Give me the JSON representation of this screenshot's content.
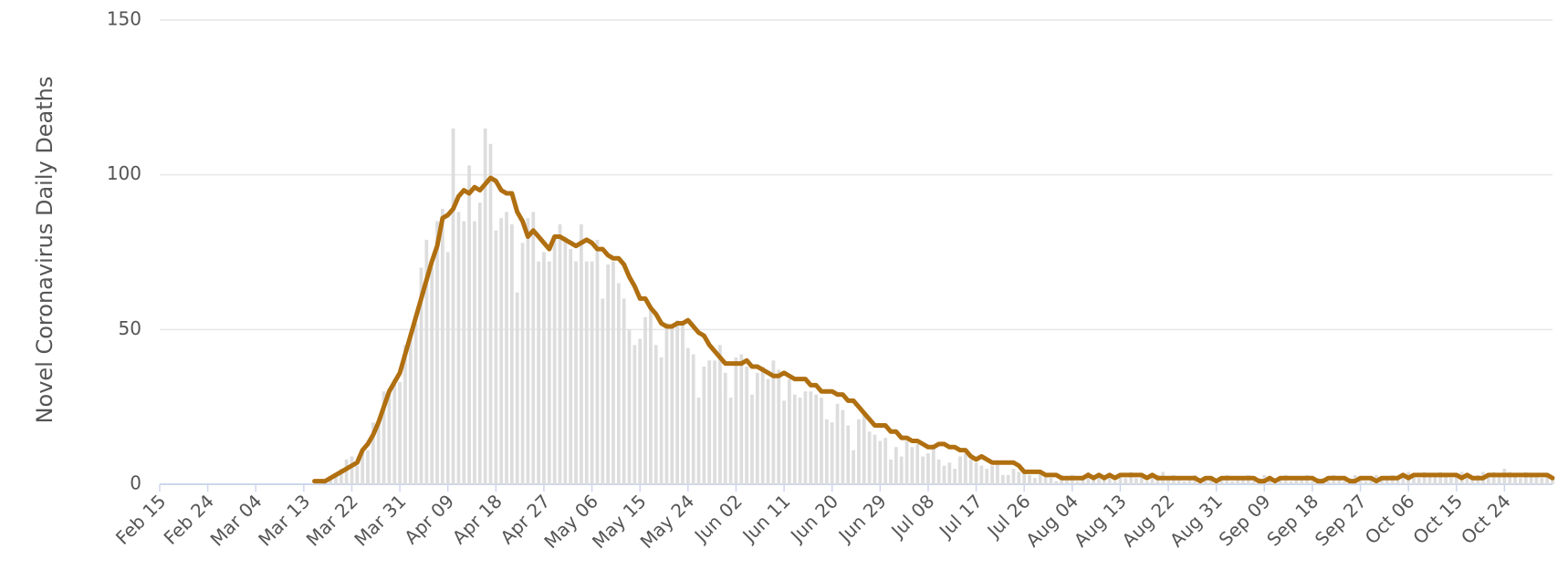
{
  "chart_data": {
    "type": "combo",
    "y_label": "Novel Coronavirus Daily Deaths",
    "categories": [
      "Feb 15",
      null,
      null,
      null,
      null,
      null,
      null,
      null,
      null,
      "Feb 24",
      null,
      null,
      null,
      null,
      null,
      null,
      null,
      null,
      "Mar 04",
      null,
      null,
      null,
      null,
      null,
      null,
      null,
      null,
      "Mar 13",
      null,
      null,
      null,
      null,
      null,
      null,
      null,
      null,
      "Mar 22",
      null,
      null,
      null,
      null,
      null,
      null,
      null,
      null,
      "Mar 31",
      null,
      null,
      null,
      null,
      null,
      null,
      null,
      null,
      "Apr 09",
      null,
      null,
      null,
      null,
      null,
      null,
      null,
      null,
      "Apr 18",
      null,
      null,
      null,
      null,
      null,
      null,
      null,
      null,
      "Apr 27",
      null,
      null,
      null,
      null,
      null,
      null,
      null,
      null,
      "May 06",
      null,
      null,
      null,
      null,
      null,
      null,
      null,
      null,
      "May 15",
      null,
      null,
      null,
      null,
      null,
      null,
      null,
      null,
      "May 24",
      null,
      null,
      null,
      null,
      null,
      null,
      null,
      null,
      "Jun 02",
      null,
      null,
      null,
      null,
      null,
      null,
      null,
      null,
      "Jun 11",
      null,
      null,
      null,
      null,
      null,
      null,
      null,
      null,
      "Jun 20",
      null,
      null,
      null,
      null,
      null,
      null,
      null,
      null,
      "Jun 29",
      null,
      null,
      null,
      null,
      null,
      null,
      null,
      null,
      "Jul 08",
      null,
      null,
      null,
      null,
      null,
      null,
      null,
      null,
      "Jul 17",
      null,
      null,
      null,
      null,
      null,
      null,
      null,
      null,
      "Jul 26",
      null,
      null,
      null,
      null,
      null,
      null,
      null,
      null,
      "Aug 04",
      null,
      null,
      null,
      null,
      null,
      null,
      null,
      null,
      "Aug 13",
      null,
      null,
      null,
      null,
      null,
      null,
      null,
      null,
      "Aug 22",
      null,
      null,
      null,
      null,
      null,
      null,
      null,
      null,
      "Aug 31",
      null,
      null,
      null,
      null,
      null,
      null,
      null,
      null,
      "Sep 09",
      null,
      null,
      null,
      null,
      null,
      null,
      null,
      null,
      "Sep 18",
      null,
      null,
      null,
      null,
      null,
      null,
      null,
      null,
      "Sep 27",
      null,
      null,
      null,
      null,
      null,
      null,
      null,
      null,
      "Oct 06",
      null,
      null,
      null,
      null,
      null,
      null,
      null,
      null,
      "Oct 15",
      null,
      null,
      null,
      null,
      null,
      null,
      null,
      null,
      "Oct 24",
      null,
      null,
      null,
      null,
      null,
      null,
      null,
      null,
      null
    ],
    "series": [
      {
        "type": "bar",
        "color": "#dddddd",
        "values": [
          0,
          0,
          0,
          0,
          0,
          0,
          0,
          0,
          0,
          0,
          0,
          0,
          0,
          0,
          0,
          0,
          0,
          0,
          0,
          0,
          0,
          0,
          0,
          0,
          0,
          0,
          0,
          0,
          0,
          1,
          1,
          0,
          2,
          3,
          5,
          8,
          9,
          6,
          11,
          11,
          20,
          21,
          30,
          31,
          34,
          33,
          45,
          48,
          52,
          70,
          79,
          70,
          85,
          89,
          75,
          115,
          88,
          85,
          103,
          85,
          91,
          115,
          110,
          82,
          86,
          88,
          84,
          62,
          78,
          86,
          88,
          72,
          75,
          72,
          80,
          84,
          80,
          76,
          72,
          84,
          72,
          72,
          79,
          60,
          71,
          72,
          65,
          60,
          50,
          45,
          47,
          54,
          58,
          45,
          41,
          52,
          51,
          53,
          52,
          44,
          42,
          28,
          38,
          40,
          40,
          45,
          36,
          28,
          41,
          42,
          38,
          29,
          36,
          38,
          34,
          40,
          37,
          27,
          34,
          29,
          28,
          30,
          30,
          29,
          28,
          21,
          20,
          26,
          24,
          19,
          11,
          21,
          23,
          17,
          16,
          14,
          15,
          8,
          12,
          9,
          14,
          12,
          13,
          9,
          10,
          12,
          8,
          6,
          7,
          5,
          9,
          10,
          8,
          7,
          6,
          5,
          6,
          7,
          3,
          3,
          5,
          4,
          4,
          3,
          2,
          4,
          3,
          2,
          1,
          3,
          2,
          3,
          1,
          2,
          4,
          2,
          3,
          2,
          3,
          1,
          3,
          2,
          4,
          2,
          3,
          1,
          2,
          3,
          4,
          2,
          3,
          2,
          1,
          2,
          3,
          2,
          1,
          2,
          1,
          2,
          3,
          1,
          2,
          2,
          3,
          1,
          2,
          3,
          1,
          2,
          2,
          3,
          1,
          2,
          2,
          3,
          1,
          2,
          2,
          1,
          3,
          2,
          1,
          2,
          3,
          2,
          1,
          2,
          3,
          2,
          2,
          3,
          2,
          3,
          4,
          3,
          2,
          4,
          3,
          3,
          4,
          3,
          2,
          3,
          4,
          3,
          2,
          3,
          4,
          3,
          4,
          3,
          5,
          4,
          3,
          2,
          4,
          3,
          3,
          2,
          3,
          2
        ]
      },
      {
        "type": "line",
        "color": "#b06f10",
        "values": [
          null,
          null,
          null,
          null,
          null,
          null,
          null,
          null,
          null,
          null,
          null,
          null,
          null,
          null,
          null,
          null,
          null,
          null,
          null,
          null,
          null,
          null,
          null,
          null,
          null,
          null,
          null,
          null,
          null,
          1,
          1,
          1,
          2,
          3,
          4,
          5,
          6,
          7,
          11,
          13,
          16,
          20,
          25,
          30,
          33,
          36,
          42,
          48,
          54,
          60,
          66,
          72,
          77,
          86,
          87,
          89,
          93,
          95,
          94,
          96,
          95,
          97,
          99,
          98,
          95,
          94,
          94,
          88,
          85,
          80,
          82,
          80,
          78,
          76,
          80,
          80,
          79,
          78,
          77,
          78,
          79,
          78,
          76,
          76,
          74,
          73,
          73,
          71,
          67,
          64,
          60,
          60,
          57,
          55,
          52,
          51,
          51,
          52,
          52,
          53,
          51,
          49,
          48,
          45,
          43,
          41,
          39,
          39,
          39,
          39,
          40,
          38,
          38,
          37,
          36,
          35,
          35,
          36,
          35,
          34,
          34,
          34,
          32,
          32,
          30,
          30,
          30,
          29,
          29,
          27,
          27,
          25,
          23,
          21,
          19,
          19,
          19,
          17,
          17,
          15,
          15,
          14,
          14,
          13,
          12,
          12,
          13,
          13,
          12,
          12,
          11,
          11,
          9,
          8,
          9,
          8,
          7,
          7,
          7,
          7,
          7,
          6,
          4,
          4,
          4,
          4,
          3,
          3,
          3,
          2,
          2,
          2,
          2,
          2,
          3,
          2,
          3,
          2,
          3,
          2,
          3,
          3,
          3,
          3,
          3,
          2,
          3,
          2,
          2,
          2,
          2,
          2,
          2,
          2,
          2,
          1,
          2,
          2,
          1,
          2,
          2,
          2,
          2,
          2,
          2,
          2,
          1,
          1,
          2,
          1,
          2,
          2,
          2,
          2,
          2,
          2,
          2,
          1,
          1,
          2,
          2,
          2,
          2,
          1,
          1,
          2,
          2,
          2,
          1,
          2,
          2,
          2,
          2,
          3,
          2,
          3,
          3,
          3,
          3,
          3,
          3,
          3,
          3,
          3,
          2,
          3,
          2,
          2,
          2,
          3,
          3,
          3,
          3,
          3,
          3,
          3,
          3,
          3,
          3,
          3,
          3,
          2
        ]
      }
    ],
    "ylim": [
      0,
      150
    ],
    "yticks": [
      0,
      50,
      100,
      150
    ],
    "grid": true
  }
}
